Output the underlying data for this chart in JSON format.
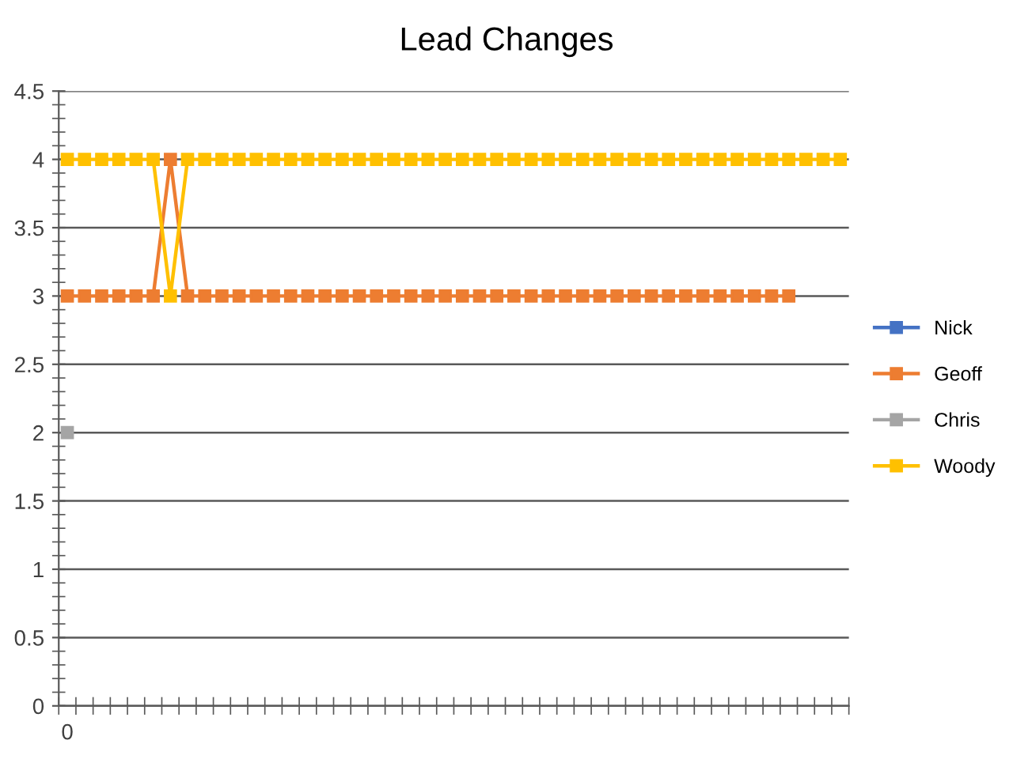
{
  "chart_data": {
    "type": "line",
    "title": "Lead Changes",
    "categories": [
      "0",
      null,
      null,
      null,
      null,
      null,
      null,
      null,
      null,
      null,
      null,
      null,
      null,
      null,
      null,
      null,
      null,
      null,
      null,
      null,
      null,
      null,
      null,
      null,
      null,
      null,
      null,
      null,
      null,
      null,
      null,
      null,
      null,
      null,
      null,
      null,
      null,
      null,
      null,
      null,
      null,
      null,
      null,
      null,
      null,
      null
    ],
    "series": [
      {
        "name": "Nick",
        "color": "#4472c4",
        "values": [
          null,
          null,
          null,
          null,
          null,
          null,
          null,
          null,
          null,
          null,
          null,
          null,
          null,
          null,
          null,
          null,
          null,
          null,
          null,
          null,
          null,
          null,
          null,
          null,
          null,
          null,
          null,
          null,
          null,
          null,
          null,
          null,
          null,
          null,
          null,
          null,
          null,
          null,
          null,
          null,
          null,
          null,
          null,
          null,
          null,
          null
        ]
      },
      {
        "name": "Geoff",
        "color": "#ed7d31",
        "values": [
          3,
          3,
          3,
          3,
          3,
          3,
          4,
          3,
          3,
          3,
          3,
          3,
          3,
          3,
          3,
          3,
          3,
          3,
          3,
          3,
          3,
          3,
          3,
          3,
          3,
          3,
          3,
          3,
          3,
          3,
          3,
          3,
          3,
          3,
          3,
          3,
          3,
          3,
          3,
          3,
          3,
          3,
          3,
          null,
          null,
          null
        ]
      },
      {
        "name": "Chris",
        "color": "#a5a5a5",
        "values": [
          2,
          null,
          null,
          null,
          null,
          null,
          null,
          null,
          null,
          null,
          null,
          null,
          null,
          null,
          null,
          null,
          null,
          null,
          null,
          null,
          null,
          null,
          null,
          null,
          null,
          null,
          null,
          null,
          null,
          null,
          null,
          null,
          null,
          null,
          null,
          null,
          null,
          null,
          null,
          null,
          null,
          null,
          null,
          null,
          null,
          null
        ]
      },
      {
        "name": "Woody",
        "color": "#ffc000",
        "values": [
          4,
          4,
          4,
          4,
          4,
          4,
          3,
          4,
          4,
          4,
          4,
          4,
          4,
          4,
          4,
          4,
          4,
          4,
          4,
          4,
          4,
          4,
          4,
          4,
          4,
          4,
          4,
          4,
          4,
          4,
          4,
          4,
          4,
          4,
          4,
          4,
          4,
          4,
          4,
          4,
          4,
          4,
          4,
          4,
          4,
          4
        ]
      }
    ],
    "ylim": [
      0,
      4.5
    ],
    "yticks": [
      0,
      0.5,
      1,
      1.5,
      2,
      2.5,
      3,
      3.5,
      4,
      4.5
    ],
    "grid": "y",
    "legend": "right",
    "marker": "square",
    "line_style": "solid"
  }
}
